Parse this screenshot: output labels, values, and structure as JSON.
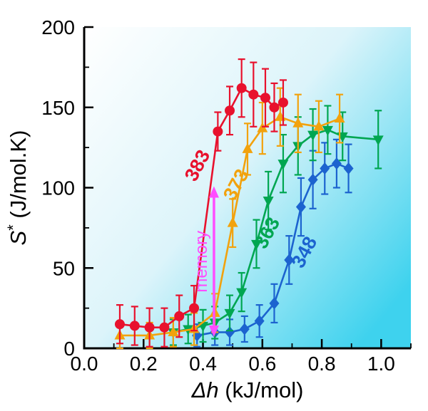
{
  "figure": {
    "kind": "scientific-plot",
    "background": "#ffffff"
  },
  "chart_data": {
    "type": "line",
    "title": "",
    "xlabel": {
      "italic": "Δh",
      "rest": " (kJ/mol)"
    },
    "ylabel": {
      "italic": "S",
      "sup": "*",
      "rest": " (J/mol.K)"
    },
    "xlim": [
      0,
      1.1
    ],
    "ylim": [
      0,
      200
    ],
    "xticks": [
      0.0,
      0.2,
      0.4,
      0.6,
      0.8,
      1.0
    ],
    "xtick_labels": [
      "0.0",
      "0.2",
      "0.4",
      "0.6",
      "0.8",
      "1.0"
    ],
    "yticks": [
      0,
      50,
      100,
      150,
      200
    ],
    "ytick_labels": [
      "0",
      "50",
      "100",
      "150",
      "200"
    ],
    "x_minor": [
      0.1,
      0.3,
      0.5,
      0.7,
      0.9,
      1.1
    ],
    "y_minor": [
      25,
      75,
      125,
      175
    ],
    "grid": false,
    "bg_gradient": [
      "#ffffff",
      "#dcf4fa",
      "#3ed2ee"
    ],
    "axis_color": "#000000",
    "series": [
      {
        "name": "348",
        "color": "#1C63CF",
        "marker": "diamond",
        "label": "348",
        "label_pos": [
          0.76,
          58
        ],
        "label_rot": -62,
        "points": [
          [
            0.38,
            8,
            7
          ],
          [
            0.44,
            10,
            8
          ],
          [
            0.49,
            10,
            8
          ],
          [
            0.54,
            12,
            8
          ],
          [
            0.59,
            17,
            10
          ],
          [
            0.64,
            28,
            12
          ],
          [
            0.69,
            55,
            15
          ],
          [
            0.73,
            88,
            18
          ],
          [
            0.77,
            105,
            18
          ],
          [
            0.81,
            112,
            16
          ],
          [
            0.85,
            115,
            15
          ],
          [
            0.89,
            112,
            15
          ]
        ]
      },
      {
        "name": "363",
        "color": "#00A651",
        "marker": "triangle-down",
        "label": "363",
        "label_pos": [
          0.635,
          70
        ],
        "label_rot": -62,
        "points": [
          [
            0.3,
            10,
            8
          ],
          [
            0.35,
            12,
            9
          ],
          [
            0.4,
            14,
            10
          ],
          [
            0.44,
            16,
            10
          ],
          [
            0.49,
            22,
            11
          ],
          [
            0.53,
            35,
            12
          ],
          [
            0.58,
            65,
            15
          ],
          [
            0.62,
            92,
            18
          ],
          [
            0.67,
            115,
            18
          ],
          [
            0.72,
            126,
            18
          ],
          [
            0.77,
            133,
            16
          ],
          [
            0.82,
            136,
            15
          ],
          [
            0.87,
            132,
            15
          ],
          [
            0.99,
            130,
            18
          ]
        ]
      },
      {
        "name": "373",
        "color": "#F2A20D",
        "marker": "triangle-up",
        "label": "373",
        "label_pos": [
          0.53,
          100
        ],
        "label_rot": -62,
        "points": [
          [
            0.12,
            8,
            8
          ],
          [
            0.22,
            8,
            8
          ],
          [
            0.3,
            10,
            9
          ],
          [
            0.37,
            12,
            10
          ],
          [
            0.44,
            22,
            12
          ],
          [
            0.5,
            78,
            15
          ],
          [
            0.55,
            124,
            16
          ],
          [
            0.6,
            137,
            16
          ],
          [
            0.66,
            144,
            18
          ],
          [
            0.72,
            140,
            18
          ],
          [
            0.79,
            138,
            16
          ],
          [
            0.86,
            143,
            15
          ]
        ]
      },
      {
        "name": "383",
        "color": "#E8112D",
        "marker": "circle",
        "label": "383",
        "label_pos": [
          0.4,
          112
        ],
        "label_rot": -62,
        "points": [
          [
            0.12,
            15,
            12
          ],
          [
            0.17,
            14,
            12
          ],
          [
            0.22,
            13,
            12
          ],
          [
            0.27,
            13,
            12
          ],
          [
            0.32,
            20,
            13
          ],
          [
            0.37,
            25,
            14
          ],
          [
            0.45,
            135,
            12
          ],
          [
            0.49,
            148,
            15
          ],
          [
            0.53,
            162,
            18
          ],
          [
            0.57,
            158,
            20
          ],
          [
            0.61,
            156,
            18
          ],
          [
            0.64,
            150,
            15
          ],
          [
            0.67,
            153,
            14
          ]
        ]
      }
    ],
    "annotation": {
      "text": "memory",
      "color": "#FF4DFF",
      "x": 0.437,
      "y_from": 8,
      "y_to": 100
    }
  }
}
